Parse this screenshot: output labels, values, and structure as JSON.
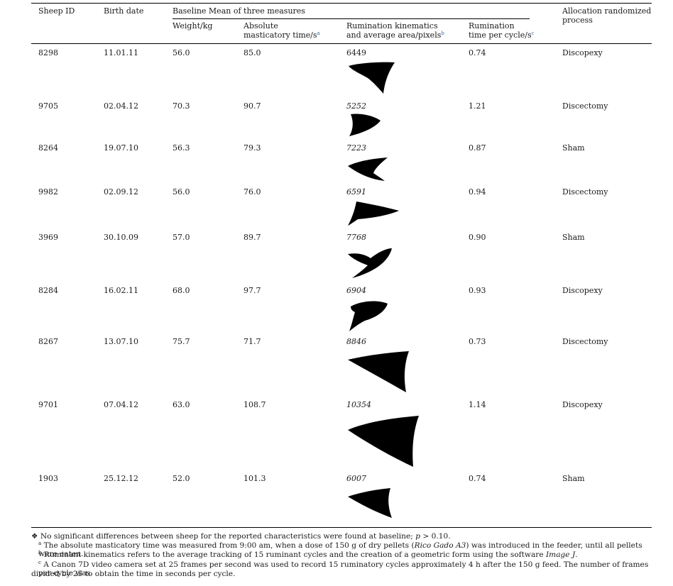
{
  "headers": {
    "sheep_id": "Sheep ID",
    "birth_date": "Birth date",
    "baseline_group": "Baseline Mean of three measures",
    "weight": "Weight/kg",
    "abs_time_l1": "Absolute",
    "abs_time_l2": "masticatory time/s",
    "abs_time_sup": "a",
    "kin_l1": "Rumination kinematics",
    "kin_l2": "and average area/pixels",
    "kin_sup": "b",
    "rum_l1": "Rumination",
    "rum_l2": "time per cycle/s",
    "rum_sup": "c",
    "alloc_l1": "Allocation randomized",
    "alloc_l2": "process"
  },
  "rows": [
    {
      "id": "8298",
      "birth": "11.01.11",
      "weight": "56.0",
      "abs_time": "85.0",
      "area": "6449",
      "rum_time": "0.74",
      "allocation": "Discopexy"
    },
    {
      "id": "9705",
      "birth": "02.04.12",
      "weight": "70.3",
      "abs_time": "90.7",
      "area": "5252",
      "rum_time": "1.21",
      "allocation": "Discectomy"
    },
    {
      "id": "8264",
      "birth": "19.07.10",
      "weight": "56.3",
      "abs_time": "79.3",
      "area": "7223",
      "rum_time": "0.87",
      "allocation": "Sham"
    },
    {
      "id": "9982",
      "birth": "02.09.12",
      "weight": "56.0",
      "abs_time": "76.0",
      "area": "6591",
      "rum_time": "0.94",
      "allocation": "Discectomy"
    },
    {
      "id": "3969",
      "birth": "30.10.09",
      "weight": "57.0",
      "abs_time": "89.7",
      "area": "7768",
      "rum_time": "0.90",
      "allocation": "Sham"
    },
    {
      "id": "8284",
      "birth": "16.02.11",
      "weight": "68.0",
      "abs_time": "97.7",
      "area": "6904",
      "rum_time": "0.93",
      "allocation": "Discopexy"
    },
    {
      "id": "8267",
      "birth": "13.07.10",
      "weight": "75.7",
      "abs_time": "71.7",
      "area": "8846",
      "rum_time": "0.73",
      "allocation": "Discectomy"
    },
    {
      "id": "9701",
      "birth": "07.04.12",
      "weight": "63.0",
      "abs_time": "108.7",
      "area": "10354",
      "rum_time": "1.14",
      "allocation": "Discopexy"
    },
    {
      "id": "1903",
      "birth": "25.12.12",
      "weight": "52.0",
      "abs_time": "101.3",
      "area": "6007",
      "rum_time": "0.74",
      "allocation": "Sham"
    }
  ],
  "footnotes": {
    "star_symbol": "❖",
    "star_a": "No significant differences between sheep for the reported characteristics were found at baseline; ",
    "star_p": "p",
    "star_b": " > 0.10.",
    "a_mark": "a",
    "a_1": "The absolute masticatory time was measured from 9:00 am, when a dose of 150 g of dry pellets (",
    "a_it": "Rico Gado A3",
    "a_2": ") was introduced in the feeder, until all pellets were eaten.",
    "b_mark": "b",
    "b_1": "Ruminant kinematics refers to the average tracking of 15 ruminant cycles and the creation of a geometric form using the software ",
    "b_it": "Image J",
    "b_2": ".",
    "c_mark": "c",
    "c_1": "A Canon 7D video camera set at 25 frames per second was used to record 15 ruminatory cycles approximately 4 h after the 150 g feed. The number of frames per cycle was",
    "c_2": "divided by 25 to obtain the time in seconds per cycle."
  }
}
